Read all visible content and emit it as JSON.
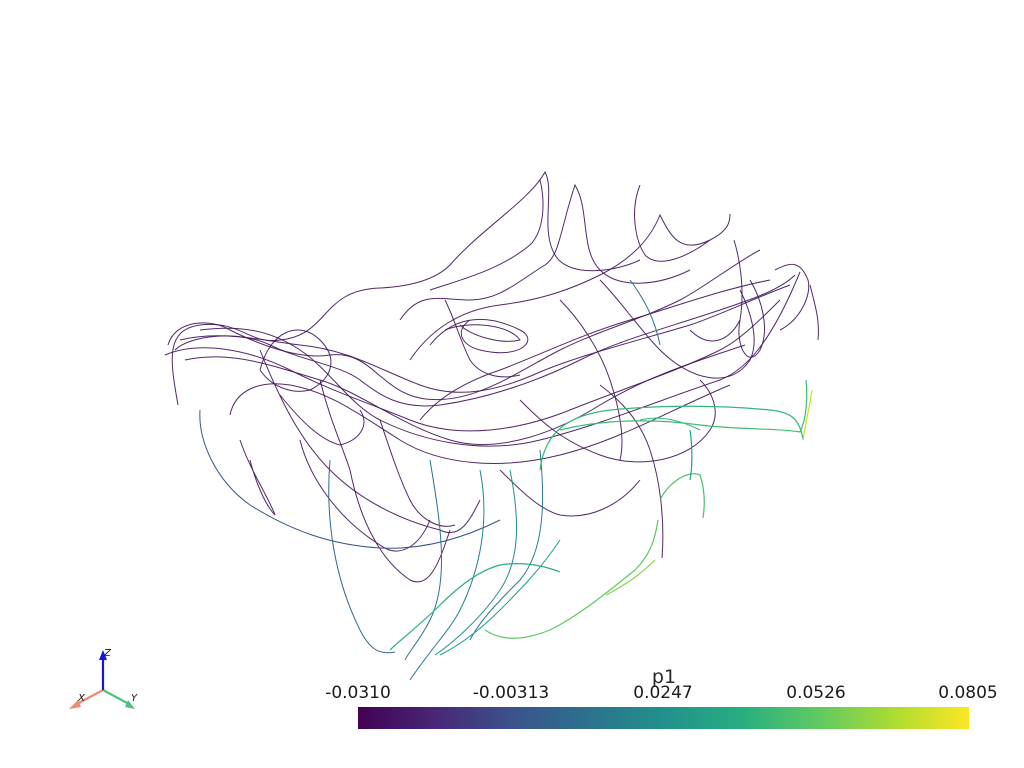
{
  "scalar_bar": {
    "title": "p1",
    "ticks": [
      "-0.0310",
      "-0.00313",
      "0.0247",
      "0.0526",
      "0.0805"
    ],
    "range": [
      -0.031,
      0.0805
    ],
    "colormap": "viridis",
    "colors": [
      "#440154",
      "#3b528b",
      "#21918c",
      "#5ec962",
      "#fde725"
    ]
  },
  "axes_widget": {
    "x_label": "X",
    "y_label": "Y",
    "z_label": "Z",
    "x_color": "#f08a6c",
    "y_color": "#4fbf7e",
    "z_color": "#1515e0"
  },
  "scene": {
    "background": "#ffffff",
    "description_icon": "streamlines-icon"
  }
}
